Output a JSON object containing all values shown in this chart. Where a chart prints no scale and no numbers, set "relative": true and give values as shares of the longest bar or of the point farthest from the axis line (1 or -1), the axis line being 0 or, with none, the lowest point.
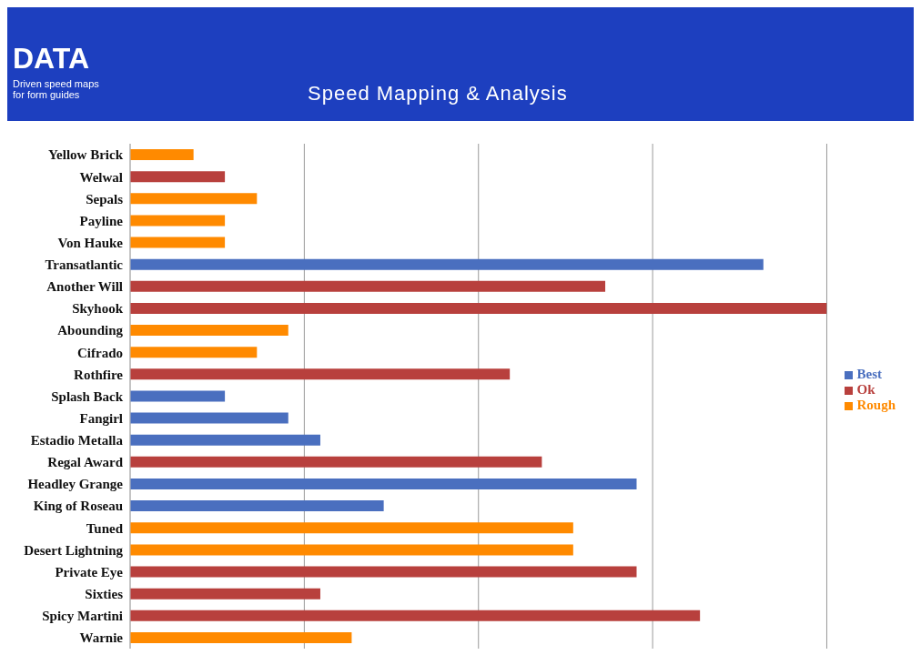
{
  "chart_data": {
    "type": "bar",
    "orientation": "horizontal",
    "stacked": true,
    "relative": true,
    "title": "Speed Mapping & Analysis",
    "annotations": [
      "DATA",
      "Driven speed maps for form guides"
    ],
    "categories": [
      "Yellow Brick",
      "Welwal",
      "Sepals",
      "Payline",
      "Von Hauke",
      "Transatlantic",
      "Another Will",
      "Skyhook",
      "Abounding",
      "Cifrado",
      "Rothfire",
      "Splash Back",
      "Fangirl",
      "Estadio Metalla",
      "Regal Award",
      "Headley Grange",
      "King of Roseau",
      "Tuned",
      "Desert Lightning",
      "Private Eye",
      "Sixties",
      "Spicy Martini",
      "Warnie"
    ],
    "series": [
      {
        "name": "Best",
        "color": "#4a6fbf",
        "values": [
          null,
          null,
          null,
          null,
          null,
          0.909,
          null,
          null,
          null,
          null,
          null,
          0.136,
          0.227,
          0.273,
          null,
          0.727,
          0.364,
          null,
          null,
          null,
          null,
          null,
          null
        ]
      },
      {
        "name": "Ok",
        "color": "#b8403d",
        "values": [
          null,
          0.136,
          null,
          null,
          null,
          null,
          0.682,
          1,
          null,
          null,
          0.545,
          null,
          null,
          null,
          0.591,
          null,
          null,
          null,
          null,
          0.727,
          0.273,
          0.818,
          null
        ]
      },
      {
        "name": "Rough",
        "color": "#ff8a00",
        "values": [
          0.091,
          null,
          0.182,
          0.136,
          0.136,
          null,
          null,
          null,
          0.227,
          0.182,
          null,
          null,
          null,
          null,
          null,
          null,
          null,
          0.636,
          0.636,
          null,
          null,
          null,
          0.318
        ]
      }
    ],
    "grid": "x",
    "legend": "right"
  }
}
